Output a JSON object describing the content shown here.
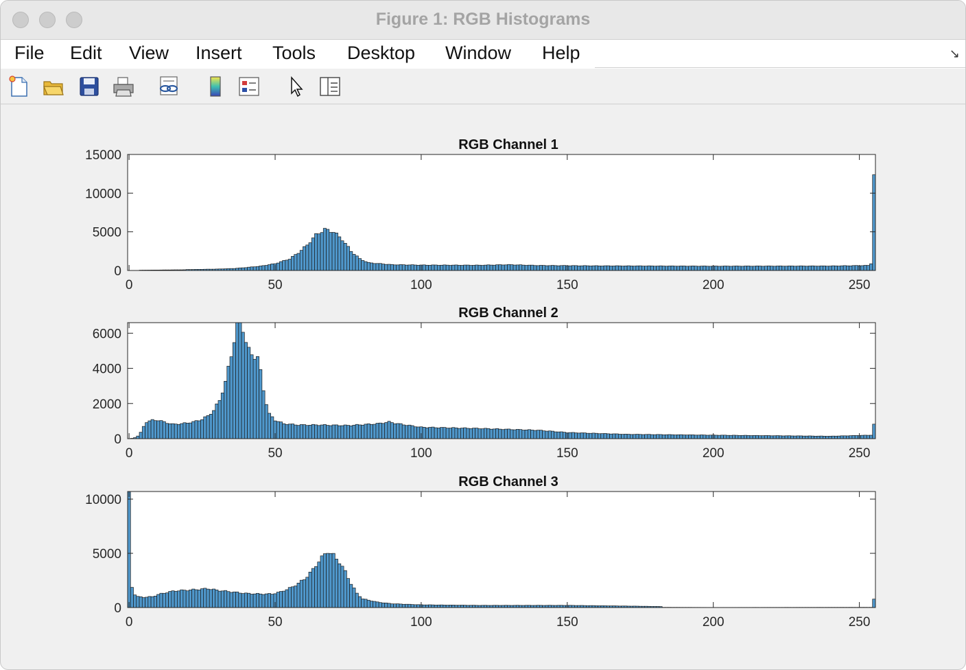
{
  "window": {
    "title": "Figure 1: RGB Histograms"
  },
  "menu": [
    "File",
    "Edit",
    "View",
    "Insert",
    "Tools",
    "Desktop",
    "Window",
    "Help"
  ],
  "toolbar_icons": [
    "new-figure-icon",
    "open-file-icon",
    "save-icon",
    "print-icon",
    "link-plot-icon",
    "colorbar-icon",
    "legend-icon",
    "pointer-icon",
    "property-editor-icon"
  ],
  "chart_data": [
    {
      "type": "bar",
      "title": "RGB Channel 1",
      "xlim": [
        0,
        255
      ],
      "ylim": [
        0,
        15000
      ],
      "xticks": [
        0,
        50,
        100,
        150,
        200,
        250
      ],
      "yticks": [
        0,
        5000,
        10000,
        15000
      ],
      "bar_color": "#4f97cb",
      "keypoints": [
        [
          0,
          0
        ],
        [
          3,
          0
        ],
        [
          4,
          40
        ],
        [
          10,
          60
        ],
        [
          19,
          90
        ],
        [
          20,
          120
        ],
        [
          30,
          180
        ],
        [
          36,
          260
        ],
        [
          40,
          380
        ],
        [
          45,
          560
        ],
        [
          50,
          880
        ],
        [
          55,
          1500
        ],
        [
          58,
          2300
        ],
        [
          61,
          3300
        ],
        [
          64,
          4600
        ],
        [
          67,
          5300
        ],
        [
          70,
          5000
        ],
        [
          73,
          4000
        ],
        [
          76,
          2500
        ],
        [
          79,
          1500
        ],
        [
          82,
          1000
        ],
        [
          90,
          750
        ],
        [
          100,
          700
        ],
        [
          120,
          680
        ],
        [
          130,
          750
        ],
        [
          140,
          650
        ],
        [
          160,
          600
        ],
        [
          200,
          560
        ],
        [
          240,
          580
        ],
        [
          253,
          650
        ],
        [
          254,
          900
        ],
        [
          255,
          12400
        ]
      ]
    },
    {
      "type": "bar",
      "title": "RGB Channel 2",
      "xlim": [
        0,
        255
      ],
      "ylim": [
        0,
        6600
      ],
      "xticks": [
        0,
        50,
        100,
        150,
        200,
        250
      ],
      "yticks": [
        0,
        2000,
        4000,
        6000
      ],
      "bar_color": "#4f97cb",
      "keypoints": [
        [
          0,
          0
        ],
        [
          1,
          20
        ],
        [
          2,
          60
        ],
        [
          3,
          150
        ],
        [
          4,
          350
        ],
        [
          5,
          700
        ],
        [
          6,
          950
        ],
        [
          8,
          1050
        ],
        [
          10,
          1050
        ],
        [
          13,
          900
        ],
        [
          15,
          820
        ],
        [
          18,
          850
        ],
        [
          22,
          950
        ],
        [
          25,
          1100
        ],
        [
          27,
          1300
        ],
        [
          29,
          1600
        ],
        [
          31,
          2200
        ],
        [
          33,
          3200
        ],
        [
          35,
          4800
        ],
        [
          36,
          5600
        ],
        [
          37,
          6600
        ],
        [
          38,
          6600
        ],
        [
          39,
          6300
        ],
        [
          40,
          5500
        ],
        [
          41,
          5000
        ],
        [
          42,
          4800
        ],
        [
          44,
          4600
        ],
        [
          45,
          3800
        ],
        [
          46,
          2800
        ],
        [
          47,
          2000
        ],
        [
          48,
          1400
        ],
        [
          50,
          1050
        ],
        [
          53,
          850
        ],
        [
          58,
          780
        ],
        [
          65,
          780
        ],
        [
          75,
          750
        ],
        [
          85,
          850
        ],
        [
          89,
          950
        ],
        [
          92,
          850
        ],
        [
          100,
          650
        ],
        [
          120,
          580
        ],
        [
          140,
          480
        ],
        [
          150,
          350
        ],
        [
          170,
          250
        ],
        [
          200,
          200
        ],
        [
          240,
          140
        ],
        [
          254,
          200
        ],
        [
          255,
          800
        ]
      ]
    },
    {
      "type": "bar",
      "title": "RGB Channel 3",
      "xlim": [
        0,
        255
      ],
      "ylim": [
        0,
        10700
      ],
      "xticks": [
        0,
        50,
        100,
        150,
        200,
        250
      ],
      "yticks": [
        0,
        5000,
        10000
      ],
      "bar_color": "#4f97cb",
      "keypoints": [
        [
          0,
          10600
        ],
        [
          1,
          1900
        ],
        [
          2,
          1200
        ],
        [
          3,
          1000
        ],
        [
          5,
          950
        ],
        [
          8,
          1000
        ],
        [
          10,
          1200
        ],
        [
          13,
          1400
        ],
        [
          16,
          1550
        ],
        [
          20,
          1600
        ],
        [
          25,
          1700
        ],
        [
          27,
          1750
        ],
        [
          30,
          1600
        ],
        [
          35,
          1450
        ],
        [
          40,
          1300
        ],
        [
          45,
          1250
        ],
        [
          49,
          1250
        ],
        [
          52,
          1450
        ],
        [
          56,
          1900
        ],
        [
          60,
          2600
        ],
        [
          63,
          3500
        ],
        [
          65,
          4300
        ],
        [
          67,
          4900
        ],
        [
          68,
          5200
        ],
        [
          70,
          4800
        ],
        [
          72,
          4200
        ],
        [
          74,
          3300
        ],
        [
          76,
          2200
        ],
        [
          78,
          1300
        ],
        [
          80,
          800
        ],
        [
          85,
          500
        ],
        [
          90,
          350
        ],
        [
          100,
          250
        ],
        [
          120,
          200
        ],
        [
          150,
          200
        ],
        [
          160,
          170
        ],
        [
          175,
          120
        ],
        [
          182,
          90
        ],
        [
          183,
          20
        ],
        [
          200,
          10
        ],
        [
          254,
          20
        ],
        [
          255,
          750
        ]
      ]
    }
  ]
}
